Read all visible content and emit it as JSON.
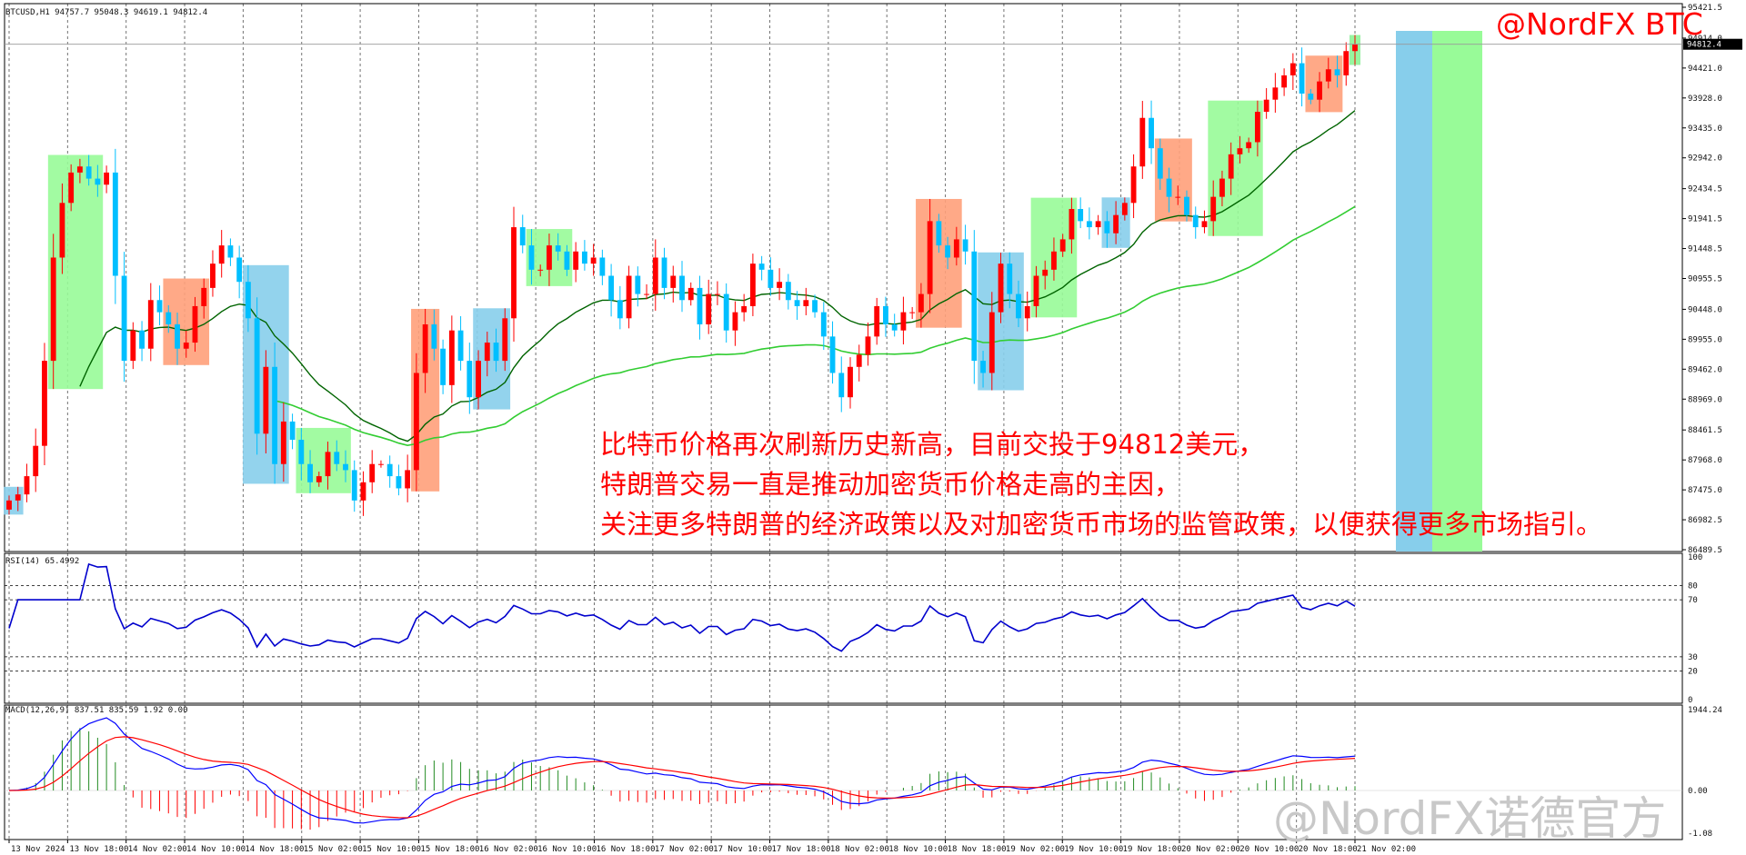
{
  "main_header": "BTCUSD,H1  94757.7 95048.3 94619.1 94812.4",
  "rsi_header": "RSI(14) 65.4992",
  "macd_header": "MACD(12,26,9) 837.51 835.59 1.92 0.00",
  "brand": "@NordFX BTC",
  "watermark": "@NordFX诺德官方",
  "annotation_lines": [
    "比特币价格再次刷新历史新高，目前交投于94812美元，",
    "特朗普交易一直是推动加密货币价格走高的主因，",
    "关注更多特朗普的经济政策以及对加密货币市场的监管政策，以便获得更多市场指引。"
  ],
  "colors": {
    "bull": "#ff0000",
    "bear": "#00bfff",
    "ma_fast": "#006400",
    "ma_slow": "#32cd32",
    "rsi": "#0000cd",
    "macd_line": "#0000ff",
    "signal_line": "#ff0000",
    "box_blue": "#87ceeb",
    "box_green": "#98fb98",
    "box_orange": "#ffa07a"
  },
  "chart_data": [
    {
      "type": "candlestick",
      "symbol": "BTCUSD",
      "timeframe": "H1",
      "current_price": 94812.4,
      "ylim": [
        86489.5,
        95421.5
      ],
      "y_ticks": [
        "95421.5",
        "94914.0",
        "94421.0",
        "93928.0",
        "93435.0",
        "92942.0",
        "92434.5",
        "91941.5",
        "91448.5",
        "90955.5",
        "90448.0",
        "89955.0",
        "89462.0",
        "88969.0",
        "88461.5",
        "87968.0",
        "87475.0",
        "86982.5",
        "86489.5"
      ],
      "price_tag": "94812.4",
      "x_ticks": [
        "13 Nov 2024",
        "13 Nov 18:00",
        "14 Nov 02:00",
        "14 Nov 10:00",
        "14 Nov 18:00",
        "15 Nov 02:00",
        "15 Nov 10:00",
        "15 Nov 18:00",
        "16 Nov 02:00",
        "16 Nov 10:00",
        "16 Nov 18:00",
        "17 Nov 02:00",
        "17 Nov 10:00",
        "17 Nov 18:00",
        "18 Nov 02:00",
        "18 Nov 10:00",
        "18 Nov 18:00",
        "19 Nov 02:00",
        "19 Nov 10:00",
        "19 Nov 18:00",
        "20 Nov 02:00",
        "20 Nov 10:00",
        "20 Nov 18:00",
        "21 Nov 02:00"
      ],
      "closes": [
        87300,
        87400,
        87700,
        88200,
        89600,
        91300,
        92200,
        92700,
        92800,
        92600,
        92500,
        92700,
        91000,
        89600,
        90100,
        89800,
        90600,
        90400,
        90200,
        89800,
        89900,
        90500,
        90800,
        91200,
        91500,
        91300,
        90900,
        90300,
        88400,
        89500,
        87900,
        88600,
        88300,
        87900,
        87600,
        87700,
        88100,
        87900,
        87800,
        87300,
        87600,
        87900,
        87900,
        87700,
        87500,
        87800,
        89400,
        90200,
        89800,
        89200,
        90100,
        89600,
        89000,
        89600,
        89900,
        89600,
        90300,
        91800,
        91500,
        91100,
        91100,
        91500,
        91400,
        91100,
        91400,
        91200,
        91300,
        91000,
        90600,
        90300,
        91000,
        90700,
        90700,
        91300,
        90800,
        91000,
        90600,
        90800,
        90200,
        90700,
        90700,
        90100,
        90400,
        90500,
        91200,
        91100,
        90800,
        90900,
        90600,
        90500,
        90600,
        90400,
        90000,
        89400,
        89000,
        89500,
        89700,
        90000,
        90500,
        90200,
        90100,
        90400,
        90400,
        90700,
        91900,
        91500,
        91300,
        91600,
        91400,
        89600,
        89400,
        90400,
        91200,
        90700,
        90300,
        90500,
        91000,
        91100,
        91400,
        91600,
        92100,
        91900,
        91800,
        91900,
        91700,
        92000,
        92200,
        92800,
        93600,
        93100,
        92600,
        92300,
        92300,
        92000,
        91800,
        91900,
        92300,
        92600,
        93000,
        93100,
        93200,
        93700,
        93900,
        94100,
        94300,
        94500,
        94000,
        93900,
        94200,
        94400,
        94300,
        94700,
        94812.4
      ]
    },
    {
      "type": "line",
      "name": "RSI(14)",
      "current": 65.4992,
      "ylim": [
        0,
        100
      ],
      "levels": [
        80,
        70,
        30,
        20
      ],
      "y_ticks": [
        "100",
        "80",
        "70",
        "30",
        "20",
        "0"
      ]
    },
    {
      "type": "line+bar",
      "name": "MACD(12,26,9)",
      "macd": 837.51,
      "signal": 835.59,
      "histogram": 1.92,
      "y_ticks": [
        "1944.24",
        "0.00",
        "-1.08"
      ]
    }
  ]
}
